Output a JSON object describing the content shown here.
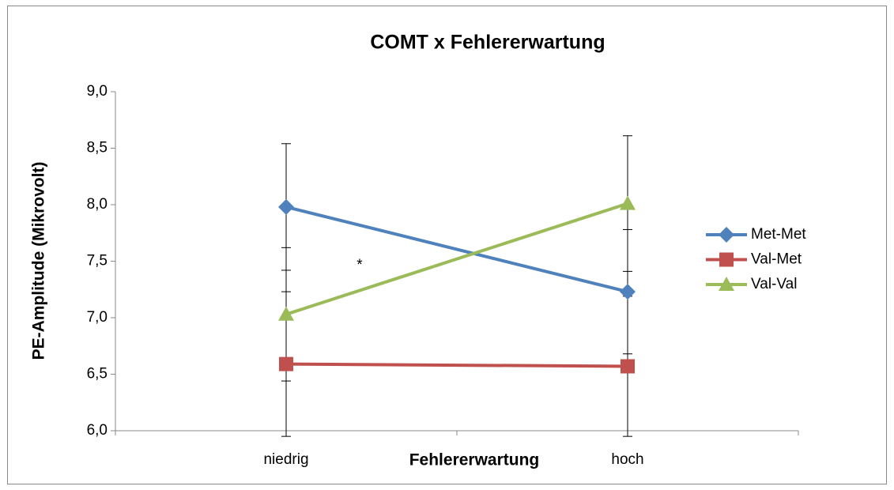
{
  "chart_data": {
    "type": "line",
    "title": "COMT x Fehlererwartung",
    "x_label": "Fehlererwartung",
    "y_label": "PE-Amplitude  (Mikrovolt)",
    "categories": [
      "niedrig",
      "hoch"
    ],
    "series": [
      {
        "name": "Met-Met",
        "color": "#4f81bd",
        "marker": "diamond",
        "values": [
          7.98,
          7.23
        ],
        "errors": [
          0.56,
          0.55
        ]
      },
      {
        "name": "Val-Met",
        "color": "#c0504d",
        "marker": "square",
        "values": [
          6.59,
          6.57
        ],
        "errors": [
          0.64,
          0.62
        ]
      },
      {
        "name": "Val-Val",
        "color": "#9bbb59",
        "marker": "triangle",
        "values": [
          7.03,
          8.01
        ],
        "errors": [
          0.59,
          0.6
        ]
      }
    ],
    "annotations": [
      "*"
    ],
    "ylim": [
      6,
      9
    ],
    "yticks": [
      {
        "value": 6,
        "label": "6,0"
      },
      {
        "value": 6.5,
        "label": "6,5"
      },
      {
        "value": 7,
        "label": "7,0"
      },
      {
        "value": 7.5,
        "label": "7,5"
      },
      {
        "value": 8,
        "label": "8,0"
      },
      {
        "value": 8.5,
        "label": "8,5"
      },
      {
        "value": 9,
        "label": "9,0"
      }
    ],
    "legend": "right"
  }
}
